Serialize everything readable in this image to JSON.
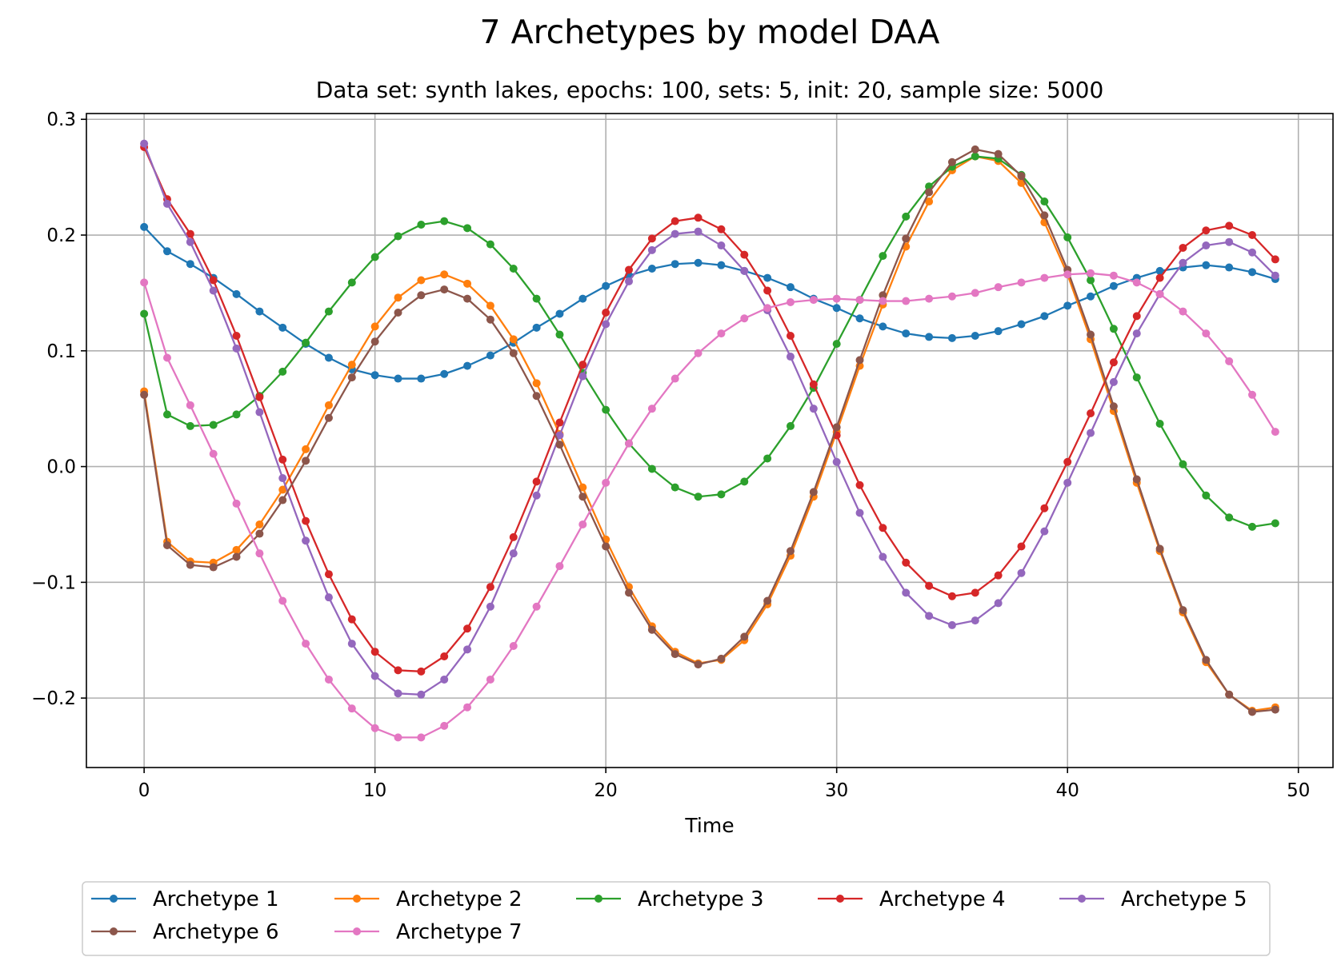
{
  "chart_data": {
    "type": "line",
    "title": "7 Archetypes by model DAA",
    "subtitle": "Data set: synth lakes, epochs: 100, sets: 5, init: 20, sample size: 5000",
    "xlabel": "Time",
    "ylabel": "",
    "xlim": [
      -2.5,
      51.5
    ],
    "ylim": [
      -0.26,
      0.305
    ],
    "xticks": [
      0,
      10,
      20,
      30,
      40,
      50
    ],
    "xtick_labels": [
      "0",
      "10",
      "20",
      "30",
      "40",
      "50"
    ],
    "yticks": [
      -0.2,
      -0.1,
      0.0,
      0.1,
      0.2,
      0.3
    ],
    "ytick_labels": [
      "−0.2",
      "−0.1",
      "0.0",
      "0.1",
      "0.2",
      "0.3"
    ],
    "grid": true,
    "legend_position": "below plot, 5 columns",
    "x": [
      0,
      1,
      2,
      3,
      4,
      5,
      6,
      7,
      8,
      9,
      10,
      11,
      12,
      13,
      14,
      15,
      16,
      17,
      18,
      19,
      20,
      21,
      22,
      23,
      24,
      25,
      26,
      27,
      28,
      29,
      30,
      31,
      32,
      33,
      34,
      35,
      36,
      37,
      38,
      39,
      40,
      41,
      42,
      43,
      44,
      45,
      46,
      47,
      48,
      49
    ],
    "series": [
      {
        "name": "Archetype 1",
        "color": "#1f77b4",
        "values": [
          0.207,
          0.186,
          0.175,
          0.163,
          0.149,
          0.134,
          0.12,
          0.106,
          0.094,
          0.084,
          0.079,
          0.076,
          0.076,
          0.08,
          0.087,
          0.096,
          0.107,
          0.12,
          0.132,
          0.145,
          0.156,
          0.165,
          0.171,
          0.175,
          0.176,
          0.174,
          0.169,
          0.163,
          0.155,
          0.145,
          0.137,
          0.128,
          0.121,
          0.115,
          0.112,
          0.111,
          0.113,
          0.117,
          0.123,
          0.13,
          0.139,
          0.147,
          0.156,
          0.163,
          0.169,
          0.172,
          0.174,
          0.172,
          0.168,
          0.162
        ]
      },
      {
        "name": "Archetype 2",
        "color": "#ff7f0e",
        "values": [
          0.065,
          -0.065,
          -0.082,
          -0.083,
          -0.072,
          -0.05,
          -0.02,
          0.015,
          0.053,
          0.088,
          0.121,
          0.146,
          0.161,
          0.166,
          0.158,
          0.139,
          0.11,
          0.072,
          0.028,
          -0.018,
          -0.063,
          -0.104,
          -0.138,
          -0.16,
          -0.17,
          -0.167,
          -0.15,
          -0.119,
          -0.077,
          -0.026,
          0.03,
          0.087,
          0.14,
          0.19,
          0.229,
          0.256,
          0.268,
          0.264,
          0.245,
          0.211,
          0.166,
          0.11,
          0.048,
          -0.014,
          -0.073,
          -0.126,
          -0.169,
          -0.197,
          -0.211,
          -0.208
        ]
      },
      {
        "name": "Archetype 3",
        "color": "#2ca02c",
        "values": [
          0.132,
          0.045,
          0.035,
          0.036,
          0.045,
          0.061,
          0.082,
          0.107,
          0.134,
          0.159,
          0.181,
          0.199,
          0.209,
          0.212,
          0.206,
          0.192,
          0.171,
          0.145,
          0.114,
          0.081,
          0.049,
          0.02,
          -0.002,
          -0.018,
          -0.026,
          -0.024,
          -0.013,
          0.007,
          0.035,
          0.068,
          0.106,
          0.144,
          0.182,
          0.216,
          0.242,
          0.259,
          0.268,
          0.266,
          0.252,
          0.229,
          0.198,
          0.161,
          0.119,
          0.077,
          0.037,
          0.002,
          -0.025,
          -0.044,
          -0.052,
          -0.049
        ]
      },
      {
        "name": "Archetype 4",
        "color": "#d62728",
        "values": [
          0.276,
          0.231,
          0.201,
          0.161,
          0.113,
          0.06,
          0.006,
          -0.047,
          -0.093,
          -0.132,
          -0.16,
          -0.176,
          -0.177,
          -0.164,
          -0.14,
          -0.104,
          -0.061,
          -0.013,
          0.038,
          0.088,
          0.133,
          0.17,
          0.197,
          0.212,
          0.215,
          0.205,
          0.183,
          0.152,
          0.113,
          0.071,
          0.027,
          -0.016,
          -0.053,
          -0.083,
          -0.103,
          -0.112,
          -0.109,
          -0.094,
          -0.069,
          -0.036,
          0.004,
          0.046,
          0.09,
          0.13,
          0.163,
          0.189,
          0.204,
          0.208,
          0.2,
          0.179
        ]
      },
      {
        "name": "Archetype 5",
        "color": "#9467bd",
        "values": [
          0.279,
          0.227,
          0.194,
          0.152,
          0.102,
          0.047,
          -0.01,
          -0.064,
          -0.113,
          -0.153,
          -0.181,
          -0.196,
          -0.197,
          -0.184,
          -0.158,
          -0.121,
          -0.075,
          -0.025,
          0.027,
          0.078,
          0.123,
          0.16,
          0.187,
          0.201,
          0.203,
          0.191,
          0.169,
          0.135,
          0.095,
          0.05,
          0.004,
          -0.04,
          -0.078,
          -0.109,
          -0.129,
          -0.137,
          -0.133,
          -0.118,
          -0.092,
          -0.056,
          -0.014,
          0.029,
          0.073,
          0.115,
          0.149,
          0.176,
          0.191,
          0.194,
          0.185,
          0.165
        ]
      },
      {
        "name": "Archetype 6",
        "color": "#8c564b",
        "values": [
          0.062,
          -0.068,
          -0.085,
          -0.087,
          -0.078,
          -0.058,
          -0.029,
          0.005,
          0.042,
          0.077,
          0.108,
          0.133,
          0.148,
          0.153,
          0.145,
          0.127,
          0.098,
          0.061,
          0.019,
          -0.026,
          -0.069,
          -0.109,
          -0.141,
          -0.162,
          -0.171,
          -0.166,
          -0.147,
          -0.116,
          -0.073,
          -0.022,
          0.034,
          0.092,
          0.148,
          0.197,
          0.237,
          0.263,
          0.274,
          0.27,
          0.251,
          0.217,
          0.17,
          0.114,
          0.052,
          -0.011,
          -0.071,
          -0.124,
          -0.167,
          -0.197,
          -0.212,
          -0.21
        ]
      },
      {
        "name": "Archetype 7",
        "color": "#e377c2",
        "values": [
          0.159,
          0.094,
          0.053,
          0.011,
          -0.032,
          -0.075,
          -0.116,
          -0.153,
          -0.184,
          -0.209,
          -0.226,
          -0.234,
          -0.234,
          -0.224,
          -0.208,
          -0.184,
          -0.155,
          -0.121,
          -0.086,
          -0.05,
          -0.014,
          0.02,
          0.05,
          0.076,
          0.098,
          0.115,
          0.128,
          0.137,
          0.142,
          0.144,
          0.145,
          0.144,
          0.143,
          0.143,
          0.145,
          0.147,
          0.15,
          0.155,
          0.159,
          0.163,
          0.166,
          0.167,
          0.165,
          0.159,
          0.149,
          0.134,
          0.115,
          0.091,
          0.062,
          0.03
        ]
      }
    ]
  }
}
